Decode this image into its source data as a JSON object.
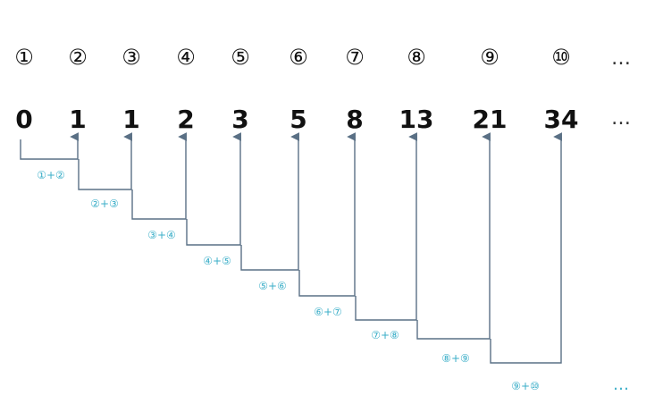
{
  "indices": [
    "①",
    "②",
    "③",
    "④",
    "⑤",
    "⑥",
    "⑦",
    "⑧",
    "⑨",
    "⑩"
  ],
  "values": [
    "0",
    "1",
    "1",
    "2",
    "3",
    "5",
    "8",
    "13",
    "21",
    "34"
  ],
  "sums": [
    "①+②",
    "②+③",
    "③+④",
    "④+⑤",
    "⑤+⑥",
    "⑥+⑦",
    "⑦+⑧",
    "⑧+⑨",
    "⑨+⑩"
  ],
  "ellipsis": "…",
  "colors": {
    "number": "#111111",
    "connector": "#5a7085",
    "sum_label": "#3aaec8",
    "ellipsis_dark": "#333333",
    "ellipsis_teal": "#3aaec8"
  }
}
